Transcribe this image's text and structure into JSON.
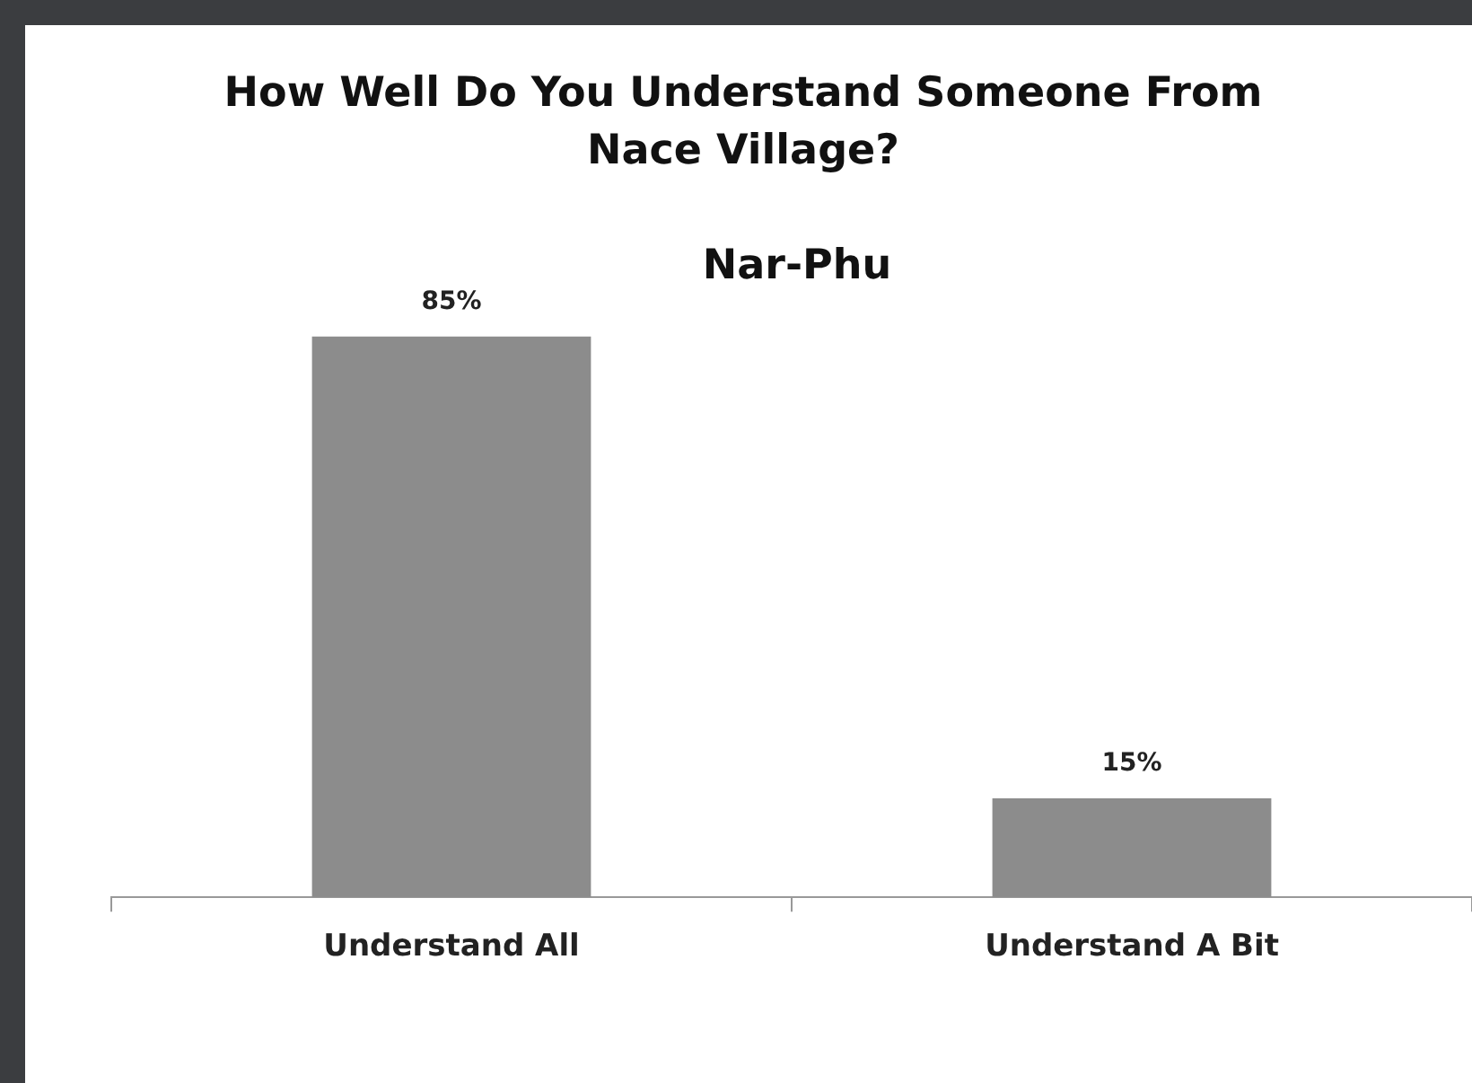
{
  "chart_data": {
    "type": "bar",
    "title": "How Well Do You Understand Someone From Nace Village?",
    "subtitle": "Nar-Phu",
    "categories": [
      "Understand All",
      "Understand A Bit"
    ],
    "values": [
      85,
      15
    ],
    "value_labels": [
      "85%",
      "15%"
    ],
    "color": "#8c8c8c",
    "tick_labels": "x",
    "grid": false,
    "legend": false
  }
}
